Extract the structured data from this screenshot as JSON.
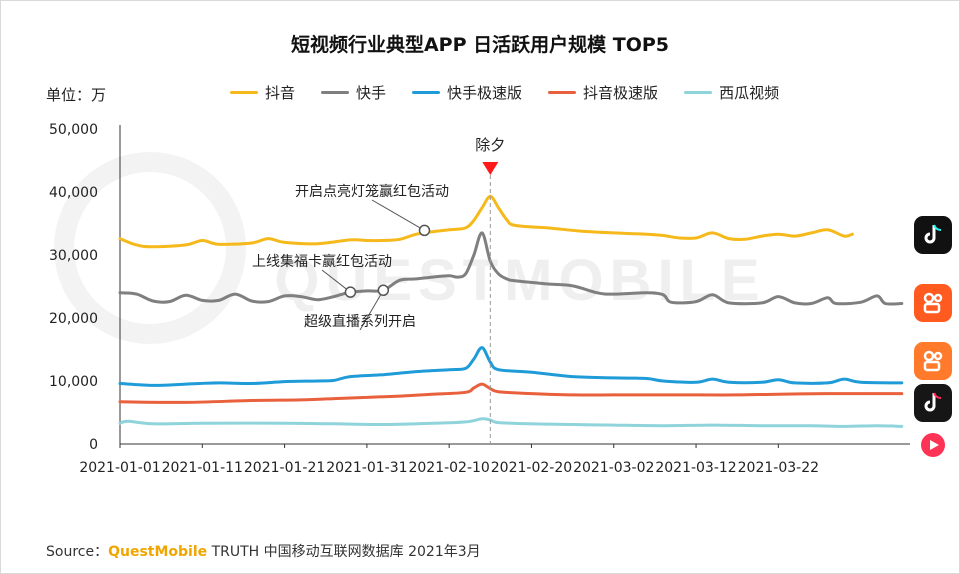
{
  "chart_data": {
    "type": "line",
    "title": "短视频行业典型APP 日活跃用户规模 TOP5",
    "unit_label": "单位：万",
    "ylim": [
      0,
      50000
    ],
    "y_ticks": [
      "50,000",
      "40,000",
      "30,000",
      "20,000",
      "10,000",
      "0"
    ],
    "y_tick_values": [
      50000,
      40000,
      30000,
      20000,
      10000,
      0
    ],
    "x_tick_labels": [
      "2021-01-01",
      "2021-01-11",
      "2021-01-21",
      "2021-01-31",
      "2021-02-10",
      "2021-02-20",
      "2021-03-02",
      "2021-03-12",
      "2021-03-22"
    ],
    "x_start": "2021-01-01",
    "x_end": "2021-03-31",
    "grid": false,
    "legend_position": "top",
    "series": [
      {
        "name": "抖音",
        "color": "#F5B91C",
        "values": [
          [
            0,
            32600
          ],
          [
            2,
            31600
          ],
          [
            4,
            31300
          ],
          [
            8,
            31600
          ],
          [
            10,
            32300
          ],
          [
            12,
            31700
          ],
          [
            16,
            31900
          ],
          [
            18,
            32600
          ],
          [
            20,
            32000
          ],
          [
            24,
            31800
          ],
          [
            28,
            32400
          ],
          [
            30,
            32300
          ],
          [
            32,
            32300
          ],
          [
            34,
            32500
          ],
          [
            36,
            33300
          ],
          [
            38,
            33700
          ],
          [
            40,
            34000
          ],
          [
            42,
            34300
          ],
          [
            43,
            35500
          ],
          [
            44,
            37500
          ],
          [
            45,
            39300
          ],
          [
            46,
            37500
          ],
          [
            47,
            35600
          ],
          [
            48,
            34700
          ],
          [
            52,
            34300
          ],
          [
            56,
            33800
          ],
          [
            60,
            33500
          ],
          [
            64,
            33300
          ],
          [
            66,
            33100
          ],
          [
            68,
            32700
          ],
          [
            70,
            32700
          ],
          [
            72,
            33500
          ],
          [
            74,
            32600
          ],
          [
            76,
            32500
          ],
          [
            78,
            33000
          ],
          [
            80,
            33300
          ],
          [
            82,
            33000
          ],
          [
            84,
            33500
          ],
          [
            86,
            34000
          ],
          [
            88,
            33000
          ],
          [
            89,
            33300
          ]
        ]
      },
      {
        "name": "快手",
        "color": "#7F7F7F",
        "values": [
          [
            0,
            24000
          ],
          [
            2,
            23800
          ],
          [
            4,
            22700
          ],
          [
            6,
            22600
          ],
          [
            8,
            23600
          ],
          [
            10,
            22800
          ],
          [
            12,
            22800
          ],
          [
            14,
            23800
          ],
          [
            16,
            22700
          ],
          [
            18,
            22600
          ],
          [
            20,
            23500
          ],
          [
            22,
            23400
          ],
          [
            24,
            22900
          ],
          [
            26,
            23400
          ],
          [
            28,
            24100
          ],
          [
            30,
            24300
          ],
          [
            32,
            24400
          ],
          [
            34,
            26000
          ],
          [
            36,
            26200
          ],
          [
            38,
            26500
          ],
          [
            40,
            26700
          ],
          [
            41,
            26500
          ],
          [
            42,
            27000
          ],
          [
            43,
            30000
          ],
          [
            44,
            33500
          ],
          [
            45,
            29000
          ],
          [
            46,
            27000
          ],
          [
            47,
            26200
          ],
          [
            48,
            25900
          ],
          [
            52,
            25400
          ],
          [
            55,
            25100
          ],
          [
            58,
            24000
          ],
          [
            60,
            23800
          ],
          [
            64,
            24000
          ],
          [
            66,
            23700
          ],
          [
            67,
            22500
          ],
          [
            70,
            22600
          ],
          [
            72,
            23700
          ],
          [
            74,
            22400
          ],
          [
            78,
            22400
          ],
          [
            80,
            23400
          ],
          [
            82,
            22400
          ],
          [
            84,
            22300
          ],
          [
            86,
            23200
          ],
          [
            87,
            22300
          ],
          [
            90,
            22500
          ],
          [
            92,
            23500
          ],
          [
            93,
            22300
          ],
          [
            95,
            22300
          ]
        ]
      },
      {
        "name": "快手极速版",
        "color": "#1F9BD7",
        "values": [
          [
            0,
            9600
          ],
          [
            4,
            9300
          ],
          [
            8,
            9500
          ],
          [
            12,
            9700
          ],
          [
            16,
            9600
          ],
          [
            20,
            9900
          ],
          [
            24,
            10000
          ],
          [
            26,
            10100
          ],
          [
            28,
            10700
          ],
          [
            32,
            11000
          ],
          [
            36,
            11500
          ],
          [
            40,
            11800
          ],
          [
            42,
            12000
          ],
          [
            43,
            13500
          ],
          [
            44,
            15300
          ],
          [
            45,
            13000
          ],
          [
            46,
            11800
          ],
          [
            50,
            11400
          ],
          [
            55,
            10700
          ],
          [
            60,
            10500
          ],
          [
            64,
            10400
          ],
          [
            66,
            10000
          ],
          [
            70,
            9800
          ],
          [
            72,
            10300
          ],
          [
            74,
            9800
          ],
          [
            78,
            9800
          ],
          [
            80,
            10200
          ],
          [
            82,
            9700
          ],
          [
            86,
            9700
          ],
          [
            88,
            10300
          ],
          [
            90,
            9800
          ],
          [
            95,
            9700
          ]
        ]
      },
      {
        "name": "抖音极速版",
        "color": "#E8603C",
        "values": [
          [
            0,
            6700
          ],
          [
            8,
            6600
          ],
          [
            16,
            6900
          ],
          [
            22,
            7000
          ],
          [
            26,
            7200
          ],
          [
            30,
            7400
          ],
          [
            34,
            7600
          ],
          [
            38,
            7900
          ],
          [
            42,
            8200
          ],
          [
            43,
            8900
          ],
          [
            44,
            9500
          ],
          [
            45,
            8800
          ],
          [
            46,
            8300
          ],
          [
            50,
            8000
          ],
          [
            55,
            7800
          ],
          [
            60,
            7800
          ],
          [
            66,
            7800
          ],
          [
            70,
            7800
          ],
          [
            75,
            7800
          ],
          [
            80,
            7900
          ],
          [
            86,
            8000
          ],
          [
            90,
            8000
          ],
          [
            95,
            8000
          ]
        ]
      },
      {
        "name": "西瓜视频",
        "color": "#8FD3DB",
        "values": [
          [
            0,
            3300
          ],
          [
            1,
            3600
          ],
          [
            4,
            3200
          ],
          [
            10,
            3300
          ],
          [
            20,
            3300
          ],
          [
            26,
            3200
          ],
          [
            32,
            3100
          ],
          [
            38,
            3300
          ],
          [
            42,
            3500
          ],
          [
            44,
            4000
          ],
          [
            45,
            3800
          ],
          [
            46,
            3400
          ],
          [
            50,
            3200
          ],
          [
            55,
            3100
          ],
          [
            60,
            3000
          ],
          [
            66,
            2900
          ],
          [
            72,
            3000
          ],
          [
            78,
            2900
          ],
          [
            84,
            2900
          ],
          [
            88,
            2800
          ],
          [
            92,
            2900
          ],
          [
            95,
            2800
          ]
        ]
      }
    ],
    "annotations": [
      {
        "text": "除夕",
        "x": 45,
        "y": 39300,
        "type": "marker"
      },
      {
        "text": "开启点亮灯笼赢红包活动",
        "x": 37,
        "y": 33900,
        "series": "抖音"
      },
      {
        "text": "上线集福卡赢红包活动",
        "x": 28,
        "y": 24100,
        "series": "快手"
      },
      {
        "text": "超级直播系列开启",
        "x": 32,
        "y": 24400,
        "series": "快手"
      }
    ]
  },
  "watermark": "QUESTMOBILE",
  "source": {
    "prefix": "Source：",
    "brand": "QuestMobile",
    "rest": " TRUTH 中国移动互联网数据库 2021年3月"
  },
  "app_icons": [
    {
      "name": "douyin-icon",
      "color": "#111111"
    },
    {
      "name": "kuaishou-icon",
      "color": "#FF5A1F"
    },
    {
      "name": "kuaishou-lite-icon",
      "color": "#FF7A2A"
    },
    {
      "name": "douyin-lite-icon",
      "color": "#161616"
    },
    {
      "name": "xigua-icon",
      "color": "#FF3355"
    }
  ]
}
